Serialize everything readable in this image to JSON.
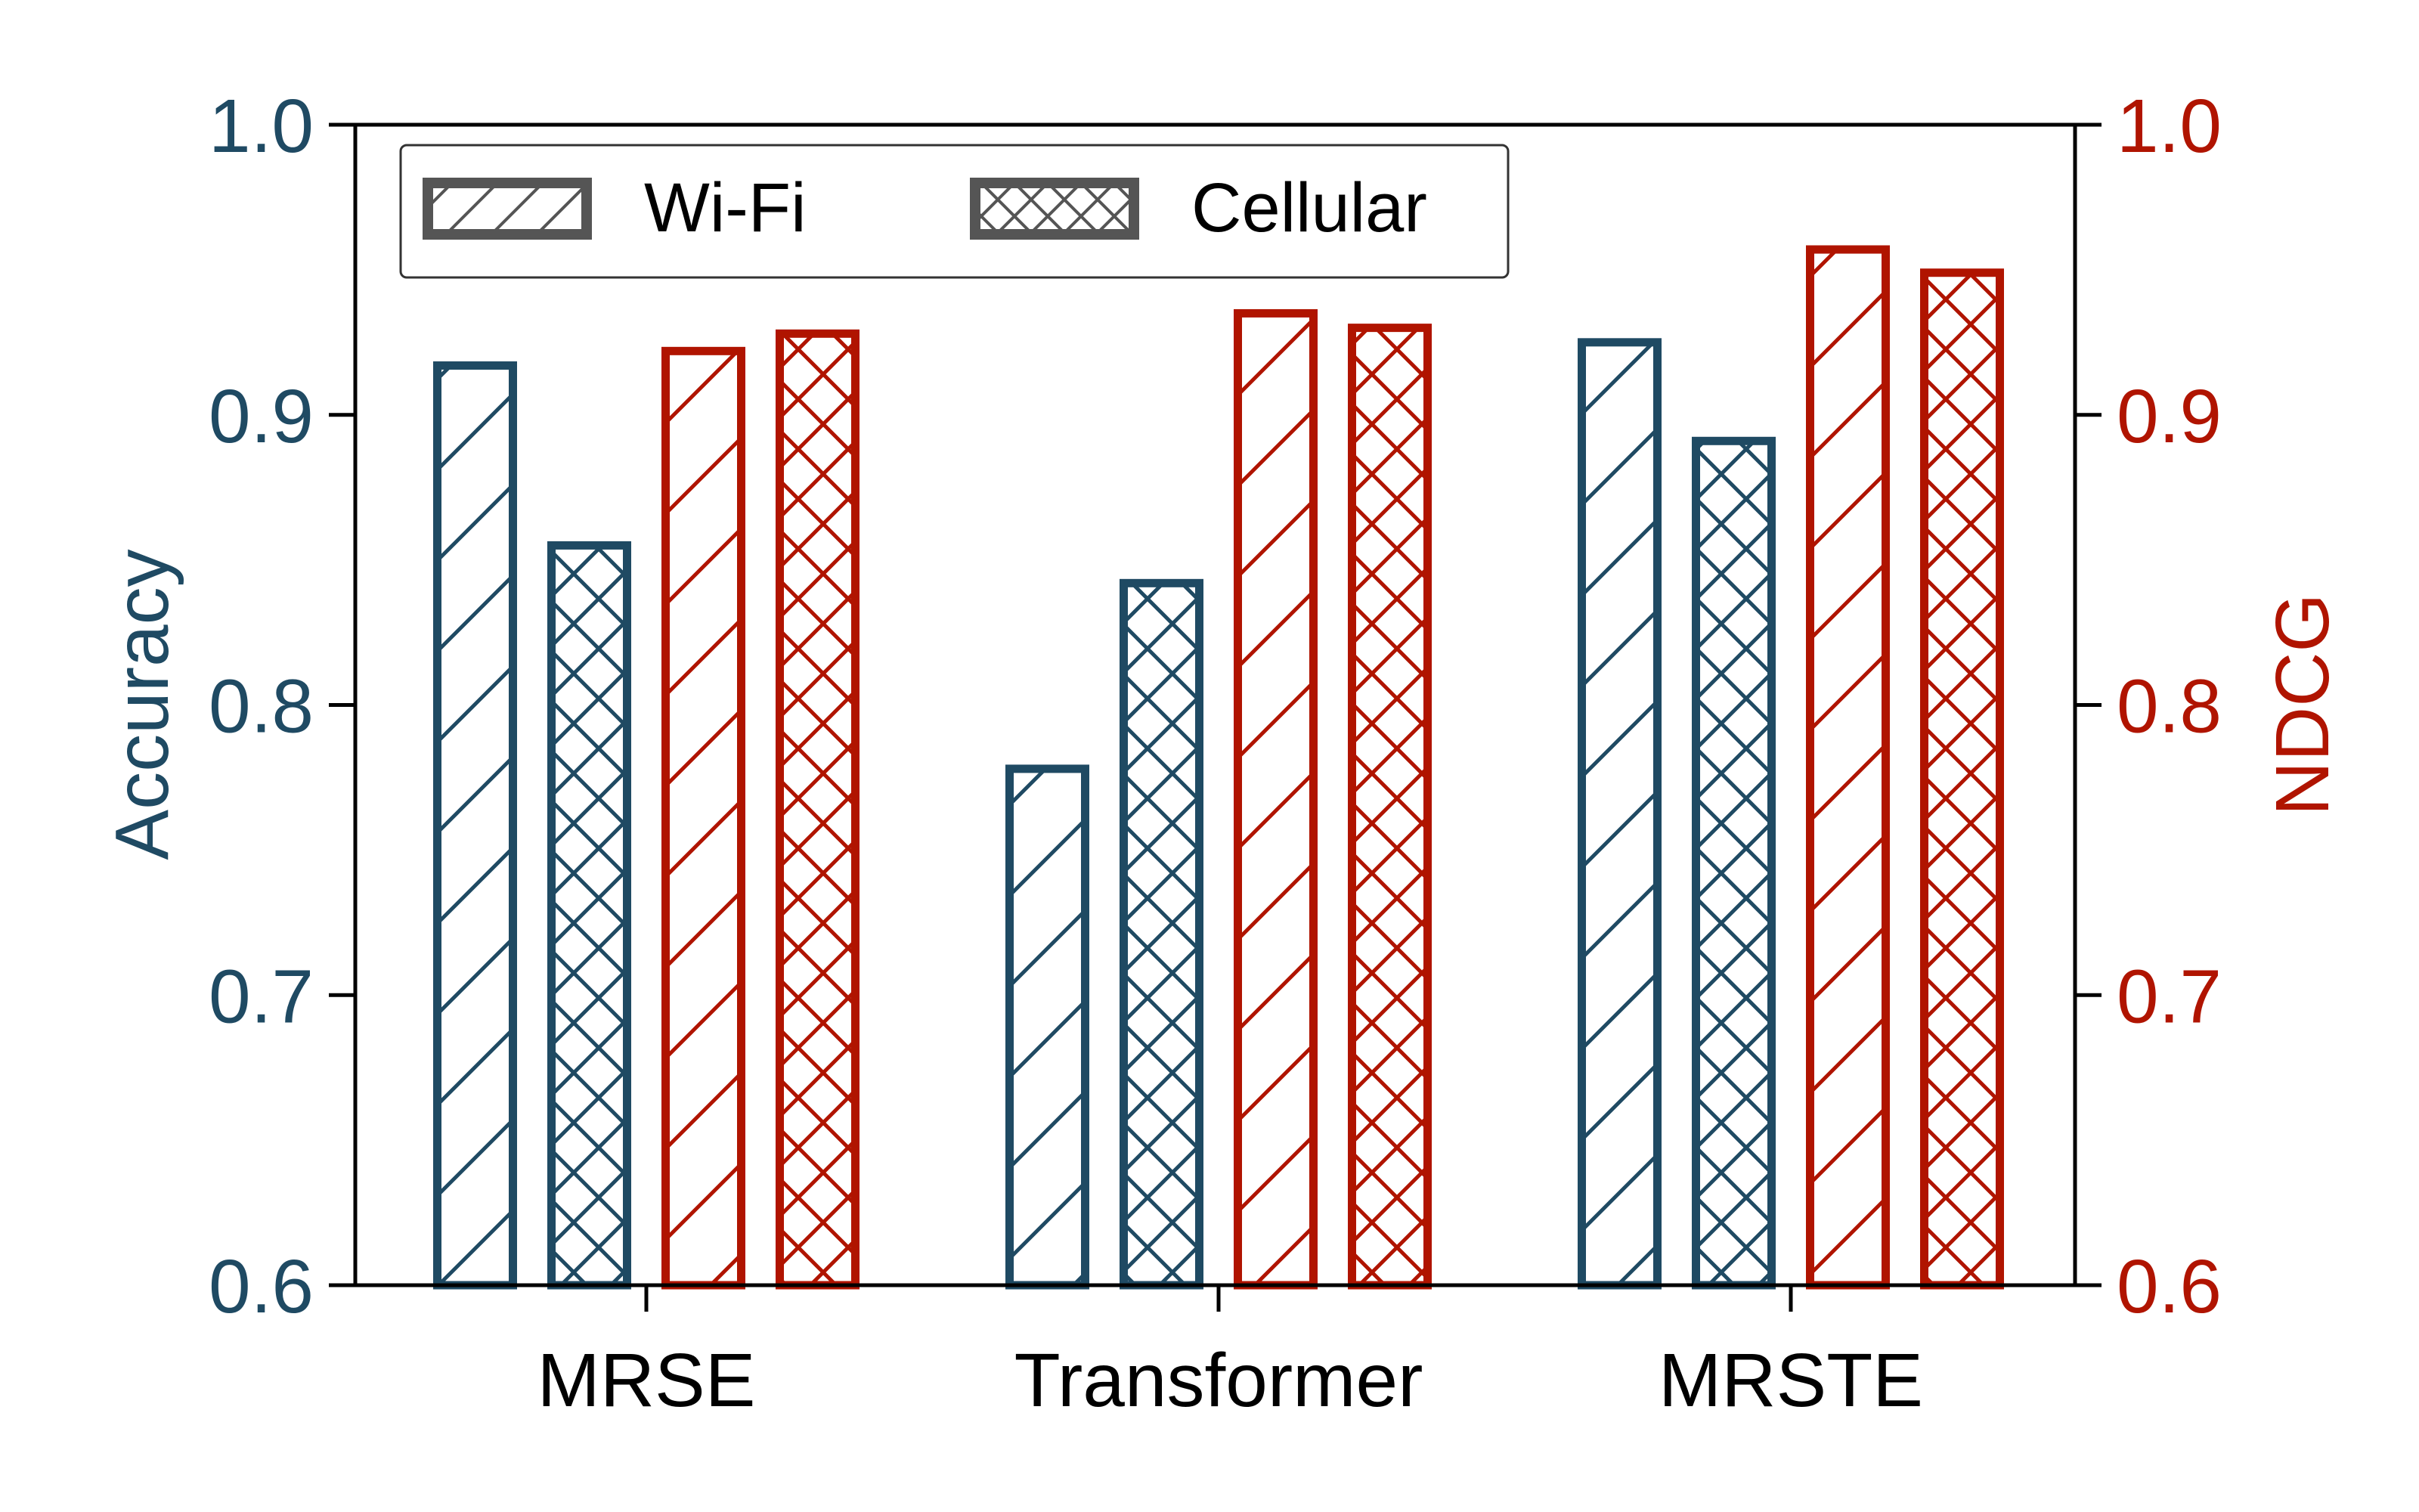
{
  "chart_data": {
    "type": "bar",
    "categories": [
      "MRSE",
      "Transformer",
      "MRSTE"
    ],
    "series": [
      {
        "name": "Wi-Fi",
        "metric": "accuracy",
        "axis": "left",
        "hatch": "diagonal",
        "values": [
          0.917,
          0.778,
          0.925
        ]
      },
      {
        "name": "Cellular",
        "metric": "accuracy",
        "axis": "left",
        "hatch": "cross",
        "values": [
          0.855,
          0.842,
          0.891
        ]
      },
      {
        "name": "Wi-Fi",
        "metric": "ndcg",
        "axis": "right",
        "hatch": "diagonal",
        "values": [
          0.922,
          0.935,
          0.957
        ]
      },
      {
        "name": "Cellular",
        "metric": "ndcg",
        "axis": "right",
        "hatch": "cross",
        "values": [
          0.928,
          0.93,
          0.949
        ]
      }
    ],
    "ylabel_left": "Accuracy",
    "ylabel_right": "NDCG",
    "ylim": [
      0.6,
      1.0
    ],
    "yticks": [
      "0.6",
      "0.7",
      "0.8",
      "0.9",
      "1.0"
    ],
    "legend": {
      "placement": "top-left",
      "entries": [
        {
          "label": "Wi-Fi",
          "hatch": "diagonal"
        },
        {
          "label": "Cellular",
          "hatch": "cross"
        }
      ]
    },
    "grid": false,
    "colors": {
      "accuracy": "#1f4a63",
      "ndcg": "#b01400",
      "legend_swatch": "#555555",
      "axis": "#000000"
    }
  }
}
